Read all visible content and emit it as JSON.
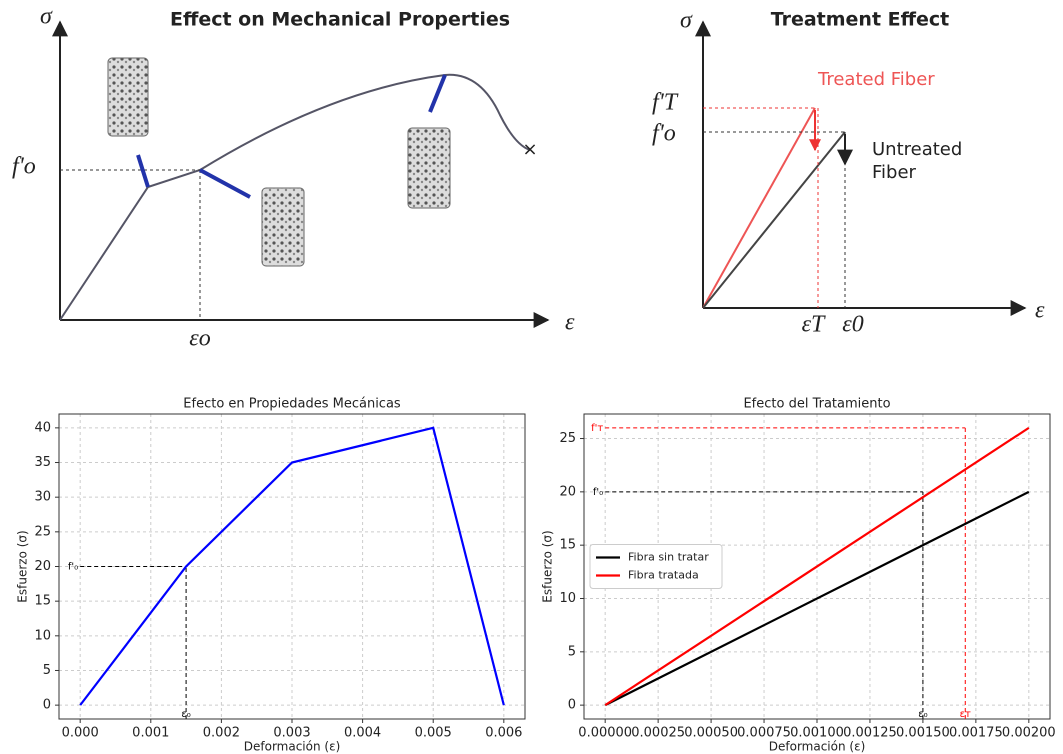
{
  "diagrams": [
    {
      "title": "Effect on Mechanical Properties",
      "y_axis": "σ",
      "x_axis": "ε",
      "stress_label": "f'o",
      "strain_label": "εo"
    },
    {
      "title": "Treatment Effect",
      "y_axis": "σ",
      "x_axis": "ε",
      "treated_label": "Treated Fiber",
      "untreated_label": [
        "Untreated",
        "Fiber"
      ],
      "treated_stress": "f'T",
      "untreated_stress": "f'o",
      "treated_strain": "εT",
      "untreated_strain": "ε0"
    }
  ],
  "chart_data": [
    {
      "type": "line",
      "title": "Efecto en Propiedades Mecánicas",
      "x_label": "Deformación (ε)",
      "y_label": "Esfuerzo (σ)",
      "x": [
        0,
        0.0015,
        0.003,
        0.005,
        0.006
      ],
      "series": [
        {
          "color": "#0000ff",
          "values": [
            0,
            20,
            35,
            40,
            0
          ]
        }
      ],
      "xlim": [
        -0.0003,
        0.0063
      ],
      "ylim": [
        -2,
        42
      ],
      "xticks": [
        {
          "value": 0,
          "label": "0.000"
        },
        {
          "value": 0.001,
          "label": "0.001"
        },
        {
          "value": 0.002,
          "label": "0.002"
        },
        {
          "value": 0.003,
          "label": "0.003"
        },
        {
          "value": 0.004,
          "label": "0.004"
        },
        {
          "value": 0.005,
          "label": "0.005"
        },
        {
          "value": 0.006,
          "label": "0.006"
        }
      ],
      "yticks": [
        0,
        5,
        10,
        15,
        20,
        25,
        30,
        35,
        40
      ],
      "grid": true,
      "reference_lines": [
        {
          "x": 0.0015,
          "y": 20,
          "color": "#000000",
          "x_label": "ε₀",
          "y_label": "f'₀"
        }
      ]
    },
    {
      "type": "line",
      "title": "Efecto del Tratamiento",
      "x_label": "Deformación (ε)",
      "y_label": "Esfuerzo (σ)",
      "x": [
        0,
        0.002
      ],
      "series": [
        {
          "name": "Fibra sin tratar",
          "color": "#000000",
          "values": [
            0,
            20
          ]
        },
        {
          "name": "Fibra tratada",
          "color": "#ff0000",
          "values": [
            0,
            26
          ]
        }
      ],
      "xlim": [
        -0.0001,
        0.0021
      ],
      "ylim": [
        -1.3,
        27.3
      ],
      "xticks": [
        {
          "value": 0,
          "label": "0.00000"
        },
        {
          "value": 0.00025,
          "label": "0.00025"
        },
        {
          "value": 0.0005,
          "label": "0.00050"
        },
        {
          "value": 0.00075,
          "label": "0.00075"
        },
        {
          "value": 0.001,
          "label": "0.00100"
        },
        {
          "value": 0.00125,
          "label": "0.00125"
        },
        {
          "value": 0.0015,
          "label": "0.00150"
        },
        {
          "value": 0.00175,
          "label": "0.00175"
        },
        {
          "value": 0.002,
          "label": "0.00200"
        }
      ],
      "yticks": [
        0,
        5,
        10,
        15,
        20,
        25
      ],
      "grid": true,
      "legend": "center left",
      "reference_lines": [
        {
          "x": 0.0015,
          "y": 20,
          "color": "#000000",
          "x_label": "ε₀",
          "y_label": "f'₀"
        },
        {
          "x": 0.0017,
          "y": 26,
          "color": "#ff0000",
          "x_label": "εᴛ",
          "y_label": "f'ᴛ"
        }
      ]
    }
  ]
}
